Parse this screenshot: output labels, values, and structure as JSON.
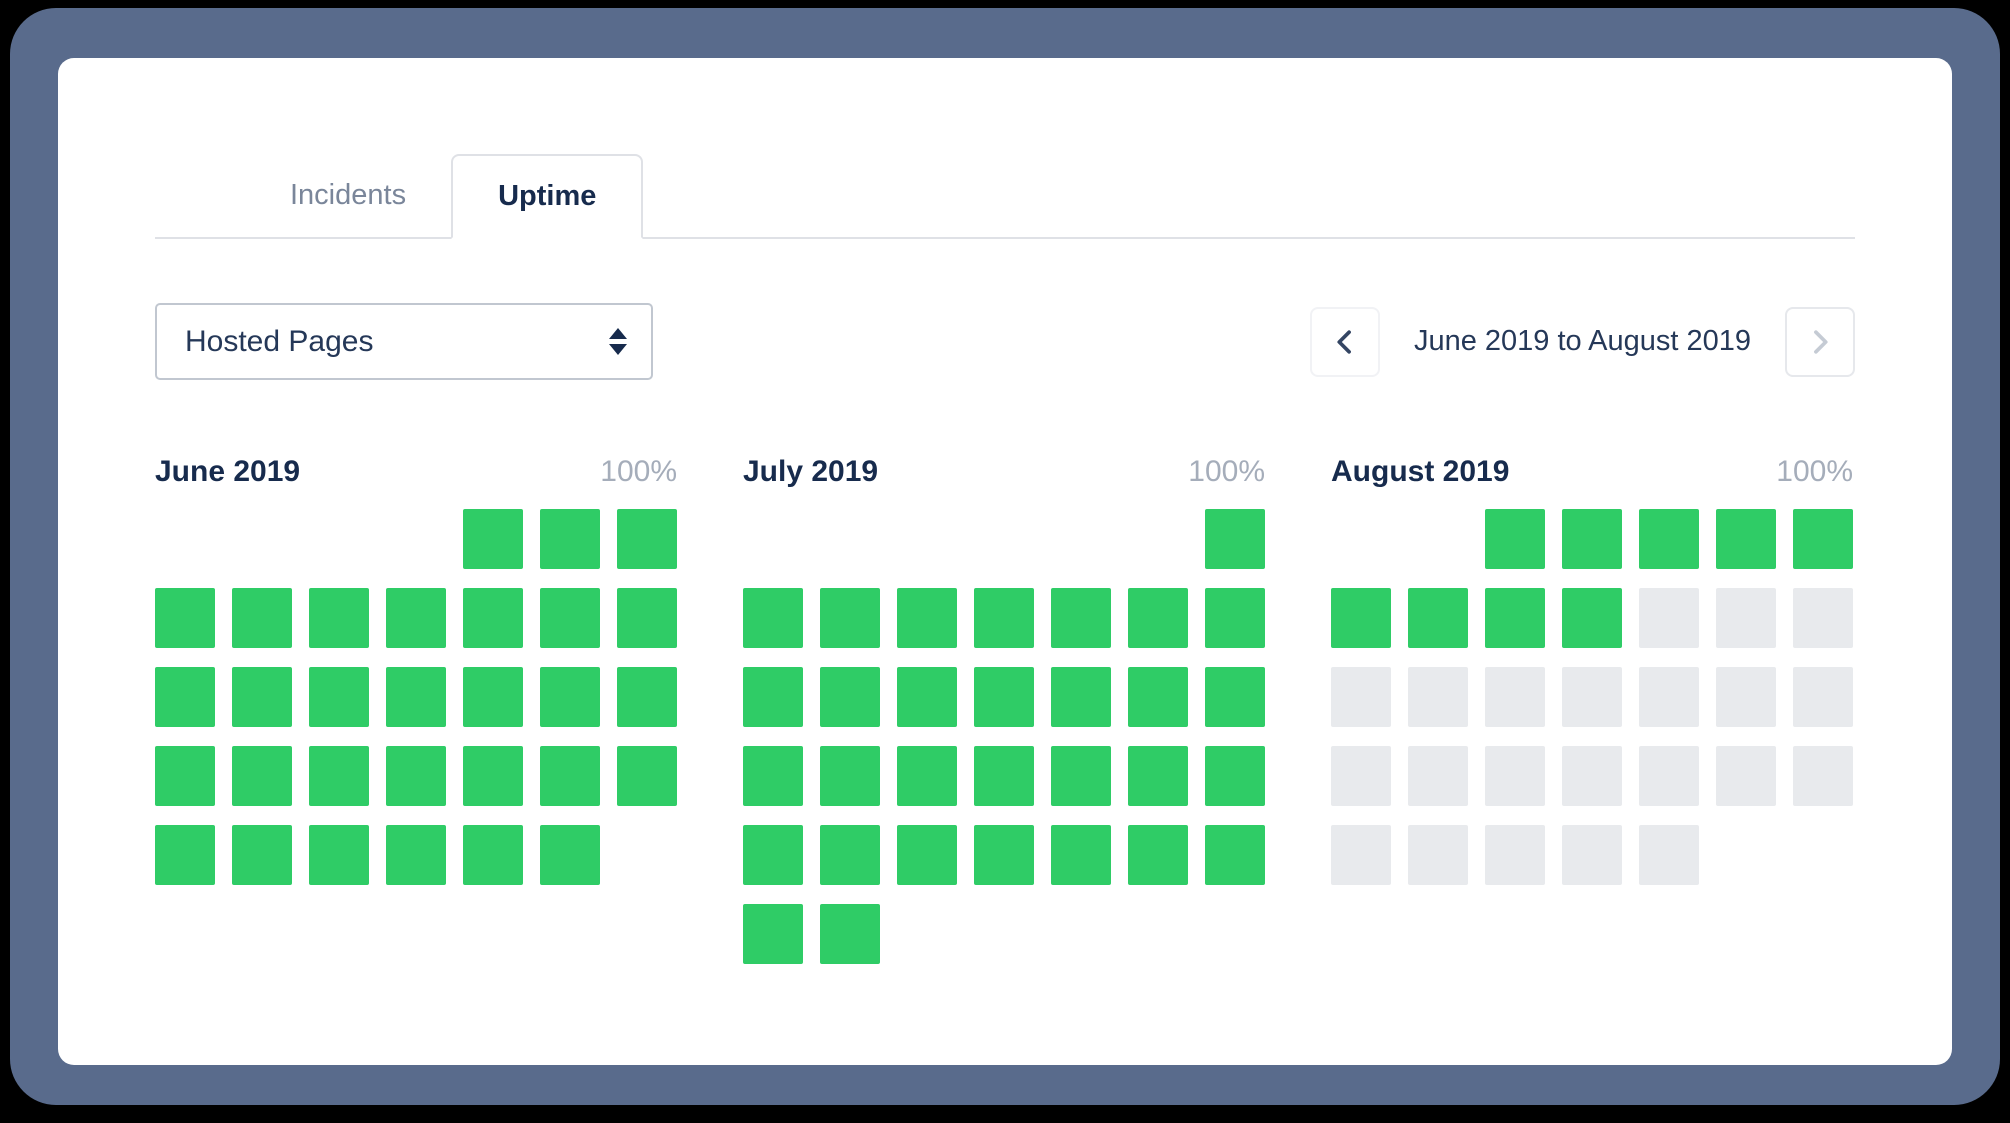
{
  "window": {
    "frame_color": "#596b8c"
  },
  "tabs": {
    "incidents": "Incidents",
    "uptime": "Uptime",
    "active": "Uptime"
  },
  "selector": {
    "value": "Hosted Pages",
    "icon": "up-down-select-arrows"
  },
  "pager": {
    "label": "June 2019 to August 2019",
    "prev_icon": "chevron-left",
    "next_icon": "chevron-right",
    "next_disabled": true
  },
  "colors": {
    "up": "#2fcc66",
    "future": "#e8eaed",
    "accent_text": "#172b4d",
    "muted_text": "#7a869a",
    "percent_text": "#a5adba",
    "frame": "#596b8c"
  },
  "cell_legend": {
    "0": "empty",
    "1": "up",
    "2": "future"
  },
  "months": [
    {
      "title": "June 2019",
      "uptime": "100%",
      "rows": [
        [
          0,
          0,
          0,
          0,
          1,
          1,
          1
        ],
        [
          1,
          1,
          1,
          1,
          1,
          1,
          1
        ],
        [
          1,
          1,
          1,
          1,
          1,
          1,
          1
        ],
        [
          1,
          1,
          1,
          1,
          1,
          1,
          1
        ],
        [
          1,
          1,
          1,
          1,
          1,
          1,
          0
        ]
      ]
    },
    {
      "title": "July 2019",
      "uptime": "100%",
      "rows": [
        [
          0,
          0,
          0,
          0,
          0,
          0,
          1
        ],
        [
          1,
          1,
          1,
          1,
          1,
          1,
          1
        ],
        [
          1,
          1,
          1,
          1,
          1,
          1,
          1
        ],
        [
          1,
          1,
          1,
          1,
          1,
          1,
          1
        ],
        [
          1,
          1,
          1,
          1,
          1,
          1,
          1
        ],
        [
          1,
          1,
          0,
          0,
          0,
          0,
          0
        ]
      ]
    },
    {
      "title": "August 2019",
      "uptime": "100%",
      "rows": [
        [
          0,
          0,
          1,
          1,
          1,
          1,
          1
        ],
        [
          1,
          1,
          1,
          1,
          2,
          2,
          2
        ],
        [
          2,
          2,
          2,
          2,
          2,
          2,
          2
        ],
        [
          2,
          2,
          2,
          2,
          2,
          2,
          2
        ],
        [
          2,
          2,
          2,
          2,
          2,
          0,
          0
        ]
      ]
    }
  ]
}
